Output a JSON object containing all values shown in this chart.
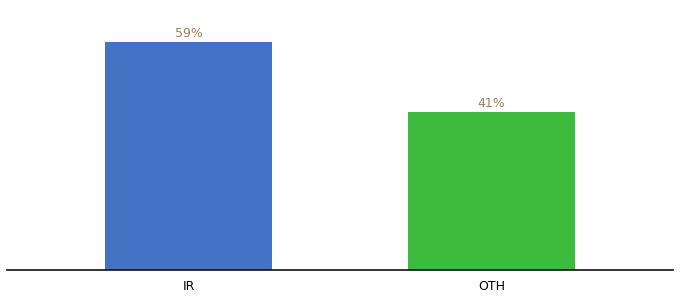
{
  "categories": [
    "IR",
    "OTH"
  ],
  "values": [
    59,
    41
  ],
  "bar_colors": [
    "#4472c4",
    "#3dbb3d"
  ],
  "label_color": "#a08060",
  "labels": [
    "59%",
    "41%"
  ],
  "background_color": "#ffffff",
  "ylim": [
    0,
    68
  ],
  "bar_width": 0.55,
  "label_fontsize": 9,
  "tick_fontsize": 9,
  "spine_color": "#111111"
}
